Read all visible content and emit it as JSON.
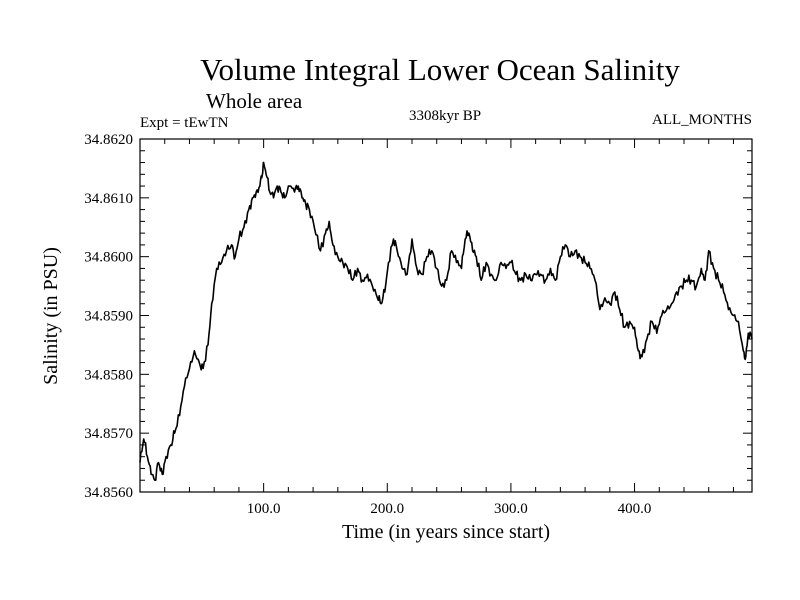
{
  "chart_data": {
    "type": "line",
    "title": "Volume Integral Lower Ocean Salinity",
    "subtitle": "Whole area",
    "left_string": "Expt = tEwTN",
    "center_string": "3308kyr BP",
    "right_string": "ALL_MONTHS",
    "xlabel": "Time (in years since start)",
    "ylabel": "Salinity (in PSU)",
    "xlim": [
      0,
      495
    ],
    "ylim": [
      34.856,
      34.862
    ],
    "x_ticks": [
      100,
      200,
      300,
      400
    ],
    "x_tick_labels": [
      "100.0",
      "200.0",
      "300.0",
      "400.0"
    ],
    "y_ticks": [
      34.856,
      34.857,
      34.858,
      34.859,
      34.86,
      34.861,
      34.862
    ],
    "y_tick_labels": [
      "34.8560",
      "34.8570",
      "34.8580",
      "34.8590",
      "34.8600",
      "34.8610",
      "34.8620"
    ],
    "line_color": "#000000",
    "series": [
      {
        "name": "salinity",
        "x": [
          0,
          3,
          6,
          9,
          12,
          15,
          18,
          21,
          25,
          28,
          32,
          36,
          40,
          44,
          48,
          51,
          55,
          58,
          62,
          66,
          70,
          74,
          77,
          80,
          84,
          88,
          91,
          94,
          97,
          99,
          100,
          102,
          105,
          108,
          111,
          114,
          117,
          121,
          125,
          128,
          131,
          134,
          137,
          141,
          146,
          150,
          153,
          156,
          160,
          164,
          168,
          172,
          176,
          180,
          184,
          188,
          192,
          195,
          198,
          201,
          205,
          208,
          212,
          216,
          220,
          224,
          228,
          232,
          236,
          240,
          244,
          248,
          252,
          256,
          260,
          263,
          266,
          269,
          272,
          276,
          280,
          284,
          288,
          292,
          296,
          300,
          304,
          308,
          312,
          316,
          320,
          324,
          328,
          332,
          336,
          340,
          344,
          348,
          352,
          356,
          360,
          364,
          368,
          372,
          376,
          380,
          384,
          388,
          392,
          396,
          400,
          403,
          406,
          410,
          414,
          418,
          422,
          426,
          430,
          434,
          438,
          442,
          446,
          450,
          454,
          457,
          460,
          464,
          468,
          472,
          476,
          480,
          484,
          488,
          490,
          492,
          495
        ],
        "y": [
          34.8565,
          34.8569,
          34.8566,
          34.8563,
          34.8562,
          34.8565,
          34.8563,
          34.8566,
          34.8568,
          34.857,
          34.8573,
          34.8578,
          34.8581,
          34.8584,
          34.8582,
          34.8581,
          34.8585,
          34.8592,
          34.8598,
          34.8599,
          34.8601,
          34.8602,
          34.86,
          34.8603,
          34.8605,
          34.8608,
          34.861,
          34.8611,
          34.8612,
          34.8614,
          34.8616,
          34.8614,
          34.8611,
          34.861,
          34.8612,
          34.8611,
          34.861,
          34.8612,
          34.8611,
          34.8612,
          34.861,
          34.8609,
          34.8608,
          34.8605,
          34.8601,
          34.8604,
          34.8606,
          34.8602,
          34.86,
          34.8599,
          34.8598,
          34.8596,
          34.8598,
          34.8596,
          34.8597,
          34.8595,
          34.8593,
          34.8592,
          34.8594,
          34.8599,
          34.8603,
          34.8601,
          34.8598,
          34.8597,
          34.8603,
          34.8598,
          34.8597,
          34.86,
          34.8601,
          34.8598,
          34.8595,
          34.8596,
          34.8601,
          34.8599,
          34.8598,
          34.8603,
          34.8604,
          34.8601,
          34.86,
          34.8596,
          34.8599,
          34.8597,
          34.8596,
          34.8599,
          34.8598,
          34.8599,
          34.8597,
          34.8596,
          34.8597,
          34.8596,
          34.8597,
          34.8597,
          34.8596,
          34.8598,
          34.8596,
          34.86,
          34.8602,
          34.86,
          34.8601,
          34.86,
          34.8599,
          34.8598,
          34.8596,
          34.8591,
          34.8593,
          34.8592,
          34.8594,
          34.8591,
          34.8588,
          34.8589,
          34.8588,
          34.8584,
          34.8583,
          34.8586,
          34.8589,
          34.8587,
          34.859,
          34.8591,
          34.8592,
          34.8594,
          34.8595,
          34.8596,
          34.8596,
          34.8595,
          34.8598,
          34.8596,
          34.8601,
          34.8598,
          34.8596,
          34.8594,
          34.8591,
          34.859,
          34.8589,
          34.8584,
          34.8583,
          34.8587,
          34.8586
        ]
      }
    ]
  }
}
